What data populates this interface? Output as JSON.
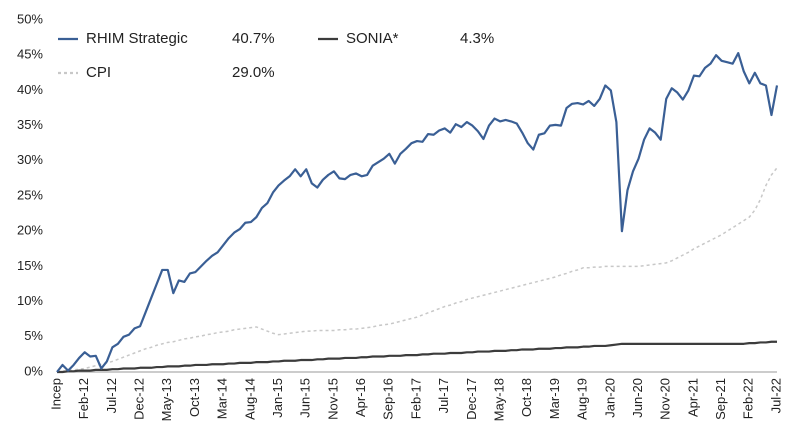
{
  "chart_data": {
    "type": "line",
    "categories": [
      "Incep",
      null,
      null,
      null,
      null,
      "Feb-12",
      null,
      null,
      null,
      null,
      "Jul-12",
      null,
      null,
      null,
      null,
      "Dec-12",
      null,
      null,
      null,
      null,
      "May-13",
      null,
      null,
      null,
      null,
      "Oct-13",
      null,
      null,
      null,
      null,
      "Mar-14",
      null,
      null,
      null,
      null,
      "Aug-14",
      null,
      null,
      null,
      null,
      "Jan-15",
      null,
      null,
      null,
      null,
      "Jun-15",
      null,
      null,
      null,
      null,
      "Nov-15",
      null,
      null,
      null,
      null,
      "Apr-16",
      null,
      null,
      null,
      null,
      "Sep-16",
      null,
      null,
      null,
      null,
      "Feb-17",
      null,
      null,
      null,
      null,
      "Jul-17",
      null,
      null,
      null,
      null,
      "Dec-17",
      null,
      null,
      null,
      null,
      "May-18",
      null,
      null,
      null,
      null,
      "Oct-18",
      null,
      null,
      null,
      null,
      "Mar-19",
      null,
      null,
      null,
      null,
      "Aug-19",
      null,
      null,
      null,
      null,
      "Jan-20",
      null,
      null,
      null,
      null,
      "Jun-20",
      null,
      null,
      null,
      null,
      "Nov-20",
      null,
      null,
      null,
      null,
      "Apr-21",
      null,
      null,
      null,
      null,
      "Sep-21",
      null,
      null,
      null,
      null,
      "Feb-22",
      null,
      null,
      null,
      null,
      "Jul-22"
    ],
    "series": [
      {
        "name": "RHIM Strategic",
        "legend_value": "40.7%",
        "color": "#3a5f95",
        "style": "solid",
        "values": [
          0,
          1.0,
          0.2,
          1.0,
          2.0,
          2.8,
          2.2,
          2.3,
          0.5,
          1.5,
          3.5,
          4.0,
          5.0,
          5.3,
          6.2,
          6.5,
          8.5,
          10.5,
          12.5,
          14.5,
          14.5,
          11.2,
          13.0,
          12.8,
          14.0,
          14.2,
          15.0,
          15.8,
          16.5,
          17.0,
          18.0,
          19.0,
          19.8,
          20.3,
          21.2,
          21.3,
          22.0,
          23.3,
          24.0,
          25.5,
          26.5,
          27.2,
          27.8,
          28.8,
          27.8,
          28.8,
          26.8,
          26.2,
          27.3,
          28.0,
          28.5,
          27.5,
          27.4,
          28.0,
          28.2,
          27.8,
          28.0,
          29.3,
          29.8,
          30.3,
          31.0,
          29.6,
          31.0,
          31.7,
          32.5,
          32.8,
          32.7,
          33.8,
          33.7,
          34.3,
          34.6,
          34.0,
          35.2,
          34.8,
          35.5,
          35.0,
          34.2,
          33.1,
          35.0,
          36.0,
          35.6,
          35.8,
          35.6,
          35.3,
          34.0,
          32.5,
          31.6,
          33.7,
          33.9,
          35.0,
          35.1,
          35.0,
          37.5,
          38.1,
          38.2,
          38.0,
          38.5,
          37.8,
          38.8,
          40.7,
          40.0,
          35.5,
          20.0,
          25.8,
          28.5,
          30.3,
          33.0,
          34.6,
          34.0,
          33.0,
          38.8,
          40.3,
          39.7,
          38.7,
          40.0,
          42.1,
          42.0,
          43.2,
          43.8,
          45.0,
          44.2,
          44.0,
          43.8,
          45.3,
          42.7,
          41.0,
          42.5,
          41.0,
          40.7,
          36.5,
          40.7
        ]
      },
      {
        "name": "SONIA*",
        "legend_value": "4.3%",
        "color": "#3c3c3c",
        "style": "solid",
        "values": [
          0,
          0,
          0.1,
          0.1,
          0.2,
          0.2,
          0.2,
          0.3,
          0.3,
          0.3,
          0.4,
          0.4,
          0.5,
          0.5,
          0.5,
          0.6,
          0.6,
          0.6,
          0.7,
          0.7,
          0.8,
          0.8,
          0.8,
          0.9,
          0.9,
          1.0,
          1.0,
          1.0,
          1.1,
          1.1,
          1.1,
          1.2,
          1.2,
          1.3,
          1.3,
          1.3,
          1.4,
          1.4,
          1.4,
          1.5,
          1.5,
          1.6,
          1.6,
          1.6,
          1.7,
          1.7,
          1.7,
          1.8,
          1.8,
          1.9,
          1.9,
          1.9,
          2.0,
          2.0,
          2.0,
          2.1,
          2.1,
          2.2,
          2.2,
          2.2,
          2.3,
          2.3,
          2.3,
          2.4,
          2.4,
          2.4,
          2.5,
          2.5,
          2.6,
          2.6,
          2.6,
          2.7,
          2.7,
          2.7,
          2.8,
          2.8,
          2.9,
          2.9,
          2.9,
          3.0,
          3.0,
          3.0,
          3.1,
          3.1,
          3.2,
          3.2,
          3.2,
          3.3,
          3.3,
          3.3,
          3.4,
          3.4,
          3.5,
          3.5,
          3.5,
          3.6,
          3.6,
          3.7,
          3.7,
          3.7,
          3.8,
          3.9,
          4.0,
          4.0,
          4.0,
          4.0,
          4.0,
          4.0,
          4.0,
          4.0,
          4.0,
          4.0,
          4.0,
          4.0,
          4.0,
          4.0,
          4.0,
          4.0,
          4.0,
          4.0,
          4.0,
          4.0,
          4.0,
          4.0,
          4.0,
          4.1,
          4.1,
          4.2,
          4.2,
          4.3,
          4.3
        ]
      },
      {
        "name": "CPI",
        "legend_value": "29.0%",
        "color": "#c8c8c8",
        "style": "dotted",
        "values": [
          0,
          0.1,
          0.2,
          0.3,
          0.4,
          0.5,
          0.7,
          0.9,
          1.1,
          1.3,
          1.5,
          1.8,
          2.1,
          2.4,
          2.7,
          3.0,
          3.3,
          3.5,
          3.8,
          4.0,
          4.2,
          4.3,
          4.5,
          4.7,
          4.8,
          5.0,
          5.1,
          5.3,
          5.4,
          5.6,
          5.7,
          5.8,
          6.0,
          6.1,
          6.2,
          6.3,
          6.4,
          6.1,
          5.8,
          5.5,
          5.3,
          5.4,
          5.5,
          5.6,
          5.7,
          5.8,
          5.8,
          5.9,
          5.9,
          5.9,
          5.9,
          6.0,
          6.0,
          6.1,
          6.1,
          6.2,
          6.3,
          6.4,
          6.6,
          6.7,
          6.8,
          7.0,
          7.2,
          7.4,
          7.6,
          7.8,
          8.1,
          8.4,
          8.7,
          9.0,
          9.3,
          9.5,
          9.8,
          10.0,
          10.3,
          10.5,
          10.7,
          10.9,
          11.1,
          11.3,
          11.5,
          11.7,
          11.9,
          12.1,
          12.3,
          12.5,
          12.7,
          12.9,
          13.1,
          13.3,
          13.5,
          13.8,
          14.0,
          14.3,
          14.5,
          14.8,
          14.8,
          14.9,
          14.9,
          15.0,
          15.0,
          15.0,
          15.0,
          15.0,
          15.0,
          15.0,
          15.1,
          15.2,
          15.3,
          15.4,
          15.5,
          15.8,
          16.2,
          16.6,
          17.0,
          17.5,
          17.9,
          18.3,
          18.7,
          19.1,
          19.5,
          20.0,
          20.5,
          21.0,
          21.5,
          22.0,
          23.0,
          24.5,
          26.5,
          28.0,
          29.0
        ]
      }
    ],
    "ylim": [
      0,
      50
    ],
    "yticks": [
      {
        "value": 0,
        "label": "0%"
      },
      {
        "value": 5,
        "label": "5%"
      },
      {
        "value": 10,
        "label": "10%"
      },
      {
        "value": 15,
        "label": "15%"
      },
      {
        "value": 20,
        "label": "20%"
      },
      {
        "value": 25,
        "label": "25%"
      },
      {
        "value": 30,
        "label": "30%"
      },
      {
        "value": 35,
        "label": "35%"
      },
      {
        "value": 40,
        "label": "40%"
      },
      {
        "value": 45,
        "label": "45%"
      },
      {
        "value": 50,
        "label": "50%"
      }
    ],
    "grid": false,
    "legend": "top-left"
  }
}
